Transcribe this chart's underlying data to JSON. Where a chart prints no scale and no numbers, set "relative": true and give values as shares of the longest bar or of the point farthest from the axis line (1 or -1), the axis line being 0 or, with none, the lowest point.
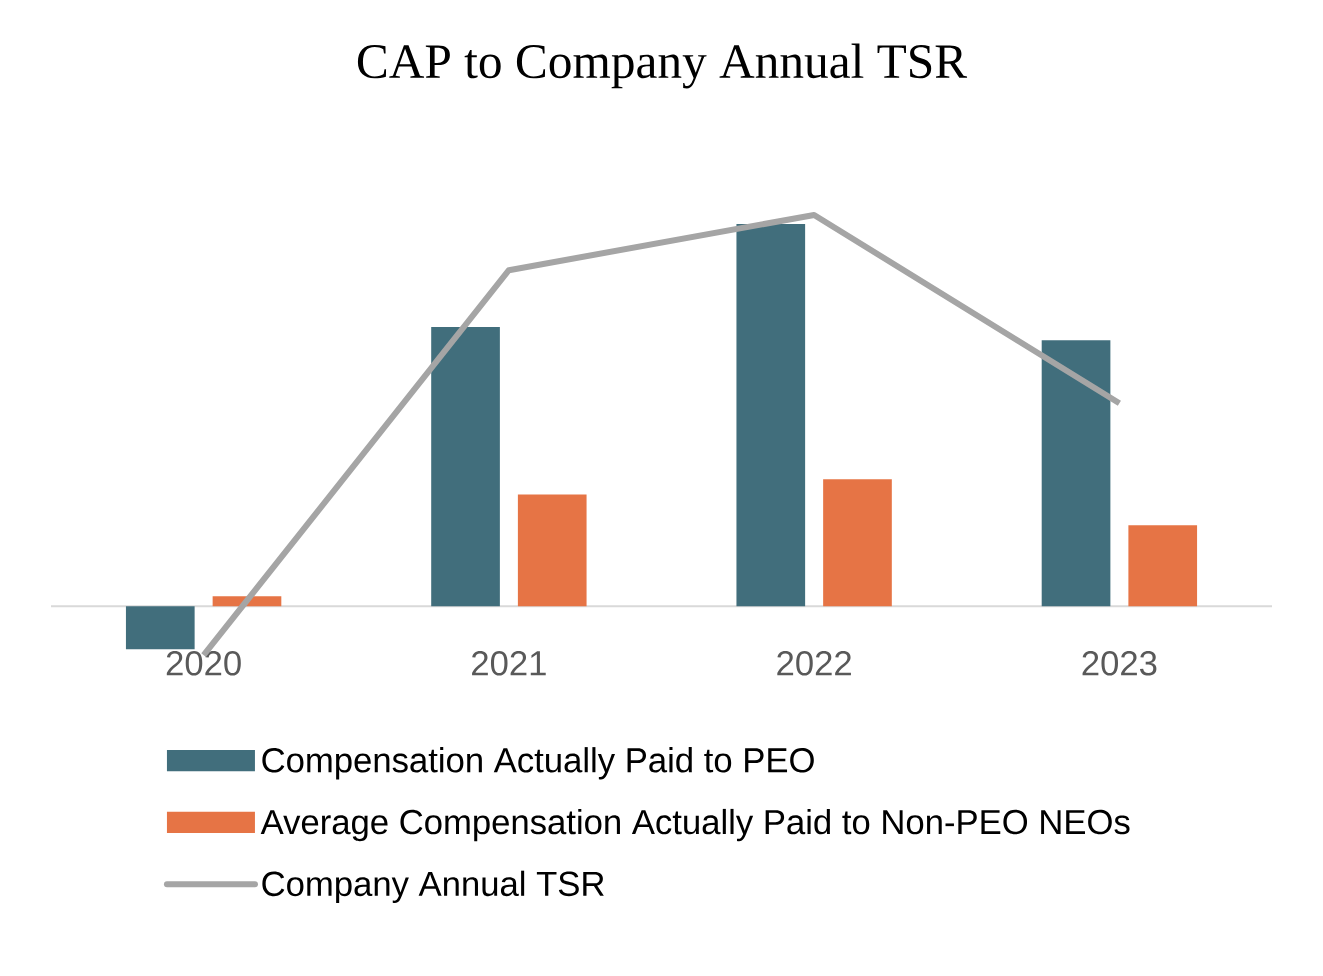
{
  "chart_data": {
    "type": "bar",
    "title": "CAP to Company Annual TSR",
    "relative": true,
    "categories": [
      "2020",
      "2021",
      "2022",
      "2023"
    ],
    "legend": "bottom",
    "series": [
      {
        "name": "Compensation Actually Paid to PEO",
        "color": "#416e7c",
        "values": [
          -0.11,
          0.714,
          0.977,
          0.68
        ]
      },
      {
        "name": "Average Compensation Actually Paid to Non-PEO NEOs",
        "color": "#e67445",
        "values": [
          0.026,
          0.286,
          0.325,
          0.207
        ]
      },
      {
        "name": "Company Annual TSR",
        "type": "line",
        "color": "#a5a5a5",
        "values": [
          -0.125,
          0.859,
          1,
          0.519
        ]
      }
    ]
  }
}
